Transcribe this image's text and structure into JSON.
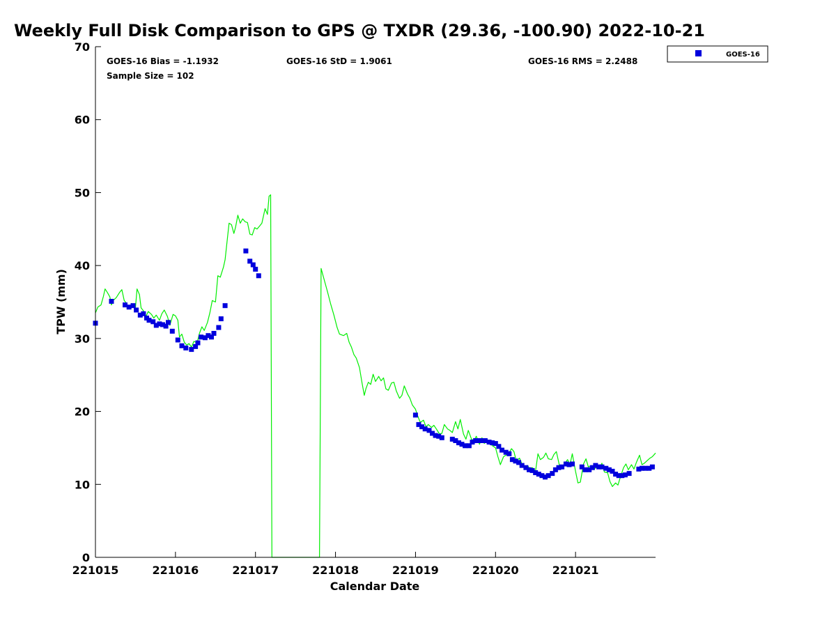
{
  "title": "Weekly Full Disk Comparison to GPS @ TXDR (29.36, -100.90) 2022-10-21",
  "stats": {
    "bias": "GOES-16 Bias = -1.1932",
    "std": "GOES-16 StD = 1.9061",
    "rms": "GOES-16 RMS = 2.2488",
    "sample": "Sample Size = 102"
  },
  "legend": {
    "label": "GOES-16"
  },
  "colors": {
    "goes": "#0000dd",
    "gps": "#00ee00",
    "axis": "#000000"
  },
  "chart_data": {
    "type": "scatter",
    "xlabel": "Calendar Date",
    "ylabel": "TPW (mm)",
    "xlim": [
      0,
      7
    ],
    "ylim": [
      0,
      70
    ],
    "x_ticks": [
      0,
      1,
      2,
      3,
      4,
      5,
      6
    ],
    "x_tick_labels": [
      "221015",
      "221016",
      "221017",
      "221018",
      "221019",
      "221020",
      "221021"
    ],
    "y_ticks": [
      0,
      10,
      20,
      30,
      40,
      50,
      60,
      70
    ],
    "y_tick_labels": [
      "0",
      "10",
      "20",
      "30",
      "40",
      "50",
      "60",
      "70"
    ],
    "series": [
      {
        "name": "GOES-16",
        "marker": "square",
        "points": [
          [
            0.0,
            32.1
          ],
          [
            0.2,
            35.1
          ],
          [
            0.37,
            34.6
          ],
          [
            0.42,
            34.3
          ],
          [
            0.47,
            34.5
          ],
          [
            0.51,
            33.9
          ],
          [
            0.56,
            33.2
          ],
          [
            0.6,
            33.4
          ],
          [
            0.64,
            32.8
          ],
          [
            0.67,
            32.5
          ],
          [
            0.72,
            32.3
          ],
          [
            0.76,
            31.8
          ],
          [
            0.8,
            32.0
          ],
          [
            0.84,
            31.9
          ],
          [
            0.88,
            31.7
          ],
          [
            0.91,
            32.2
          ],
          [
            0.96,
            31.0
          ],
          [
            1.03,
            29.8
          ],
          [
            1.08,
            29.0
          ],
          [
            1.13,
            28.7
          ],
          [
            1.2,
            28.5
          ],
          [
            1.25,
            28.9
          ],
          [
            1.28,
            29.4
          ],
          [
            1.32,
            30.2
          ],
          [
            1.37,
            30.1
          ],
          [
            1.41,
            30.4
          ],
          [
            1.45,
            30.2
          ],
          [
            1.48,
            30.7
          ],
          [
            1.54,
            31.5
          ],
          [
            1.57,
            32.7
          ],
          [
            1.62,
            34.5
          ],
          [
            1.88,
            42.0
          ],
          [
            1.93,
            40.6
          ],
          [
            1.97,
            40.1
          ],
          [
            2.0,
            39.5
          ],
          [
            2.04,
            38.6
          ],
          [
            4.0,
            19.5
          ],
          [
            4.04,
            18.2
          ],
          [
            4.08,
            17.9
          ],
          [
            4.12,
            17.6
          ],
          [
            4.17,
            17.4
          ],
          [
            4.21,
            17.0
          ],
          [
            4.25,
            16.7
          ],
          [
            4.29,
            16.6
          ],
          [
            4.33,
            16.4
          ],
          [
            4.46,
            16.2
          ],
          [
            4.5,
            16.0
          ],
          [
            4.54,
            15.7
          ],
          [
            4.58,
            15.5
          ],
          [
            4.62,
            15.3
          ],
          [
            4.67,
            15.3
          ],
          [
            4.71,
            15.8
          ],
          [
            4.75,
            16.0
          ],
          [
            4.79,
            16.0
          ],
          [
            4.83,
            16.0
          ],
          [
            4.87,
            16.0
          ],
          [
            4.92,
            15.8
          ],
          [
            4.96,
            15.7
          ],
          [
            5.0,
            15.6
          ],
          [
            5.04,
            15.2
          ],
          [
            5.08,
            14.7
          ],
          [
            5.13,
            14.4
          ],
          [
            5.17,
            14.2
          ],
          [
            5.21,
            13.4
          ],
          [
            5.25,
            13.2
          ],
          [
            5.29,
            13.0
          ],
          [
            5.33,
            12.6
          ],
          [
            5.38,
            12.3
          ],
          [
            5.42,
            12.0
          ],
          [
            5.46,
            11.9
          ],
          [
            5.5,
            11.6
          ],
          [
            5.54,
            11.4
          ],
          [
            5.58,
            11.2
          ],
          [
            5.62,
            11.0
          ],
          [
            5.66,
            11.2
          ],
          [
            5.71,
            11.5
          ],
          [
            5.75,
            12.0
          ],
          [
            5.79,
            12.3
          ],
          [
            5.83,
            12.4
          ],
          [
            5.88,
            12.8
          ],
          [
            5.92,
            12.7
          ],
          [
            5.96,
            12.8
          ],
          [
            6.08,
            12.4
          ],
          [
            6.12,
            12.0
          ],
          [
            6.17,
            12.0
          ],
          [
            6.21,
            12.3
          ],
          [
            6.25,
            12.6
          ],
          [
            6.29,
            12.4
          ],
          [
            6.33,
            12.4
          ],
          [
            6.38,
            12.2
          ],
          [
            6.42,
            12.0
          ],
          [
            6.46,
            11.8
          ],
          [
            6.5,
            11.4
          ],
          [
            6.54,
            11.2
          ],
          [
            6.58,
            11.2
          ],
          [
            6.62,
            11.3
          ],
          [
            6.67,
            11.5
          ],
          [
            6.79,
            12.1
          ],
          [
            6.83,
            12.2
          ],
          [
            6.87,
            12.2
          ],
          [
            6.92,
            12.2
          ],
          [
            6.96,
            12.4
          ]
        ]
      },
      {
        "name": "",
        "marker": "line",
        "points": [
          [
            0.0,
            33.5
          ],
          [
            0.03,
            34.3
          ],
          [
            0.07,
            34.6
          ],
          [
            0.1,
            35.8
          ],
          [
            0.12,
            36.8
          ],
          [
            0.15,
            36.3
          ],
          [
            0.18,
            35.7
          ],
          [
            0.2,
            34.6
          ],
          [
            0.22,
            35.2
          ],
          [
            0.26,
            35.6
          ],
          [
            0.3,
            36.3
          ],
          [
            0.33,
            36.7
          ],
          [
            0.36,
            35.2
          ],
          [
            0.39,
            34.8
          ],
          [
            0.42,
            34.1
          ],
          [
            0.45,
            34.8
          ],
          [
            0.48,
            34.3
          ],
          [
            0.5,
            34.2
          ],
          [
            0.52,
            36.8
          ],
          [
            0.55,
            36.0
          ],
          [
            0.57,
            34.2
          ],
          [
            0.6,
            33.8
          ],
          [
            0.63,
            33.0
          ],
          [
            0.66,
            33.7
          ],
          [
            0.7,
            33.3
          ],
          [
            0.73,
            32.8
          ],
          [
            0.76,
            33.2
          ],
          [
            0.8,
            32.5
          ],
          [
            0.83,
            33.4
          ],
          [
            0.86,
            33.9
          ],
          [
            0.9,
            33.0
          ],
          [
            0.93,
            31.8
          ],
          [
            0.97,
            33.3
          ],
          [
            1.0,
            33.1
          ],
          [
            1.03,
            32.5
          ],
          [
            1.05,
            30.2
          ],
          [
            1.08,
            30.6
          ],
          [
            1.11,
            29.5
          ],
          [
            1.14,
            29.1
          ],
          [
            1.17,
            29.3
          ],
          [
            1.2,
            28.8
          ],
          [
            1.23,
            29.6
          ],
          [
            1.27,
            29.4
          ],
          [
            1.3,
            30.7
          ],
          [
            1.33,
            31.6
          ],
          [
            1.36,
            31.1
          ],
          [
            1.4,
            32.2
          ],
          [
            1.43,
            33.5
          ],
          [
            1.46,
            35.2
          ],
          [
            1.5,
            35.0
          ],
          [
            1.53,
            38.6
          ],
          [
            1.56,
            38.4
          ],
          [
            1.6,
            39.8
          ],
          [
            1.62,
            40.8
          ],
          [
            1.65,
            43.8
          ],
          [
            1.67,
            45.8
          ],
          [
            1.7,
            45.6
          ],
          [
            1.73,
            44.4
          ],
          [
            1.75,
            45.2
          ],
          [
            1.78,
            46.9
          ],
          [
            1.81,
            45.8
          ],
          [
            1.84,
            46.4
          ],
          [
            1.87,
            46.0
          ],
          [
            1.9,
            45.9
          ],
          [
            1.93,
            44.3
          ],
          [
            1.96,
            44.2
          ],
          [
            1.99,
            45.2
          ],
          [
            2.02,
            45.0
          ],
          [
            2.05,
            45.4
          ],
          [
            2.08,
            45.8
          ],
          [
            2.12,
            47.8
          ],
          [
            2.15,
            47.0
          ],
          [
            2.17,
            49.5
          ],
          [
            2.19,
            49.7
          ],
          [
            2.205,
            0.0
          ],
          [
            2.8,
            0.0
          ],
          [
            2.82,
            39.6
          ],
          [
            2.86,
            38.0
          ],
          [
            2.9,
            36.4
          ],
          [
            2.94,
            34.7
          ],
          [
            2.98,
            33.2
          ],
          [
            3.02,
            31.5
          ],
          [
            3.05,
            30.6
          ],
          [
            3.1,
            30.4
          ],
          [
            3.14,
            30.7
          ],
          [
            3.17,
            29.5
          ],
          [
            3.2,
            28.8
          ],
          [
            3.23,
            27.8
          ],
          [
            3.26,
            27.3
          ],
          [
            3.3,
            26.0
          ],
          [
            3.33,
            24.0
          ],
          [
            3.36,
            22.2
          ],
          [
            3.38,
            23.1
          ],
          [
            3.41,
            24.0
          ],
          [
            3.44,
            23.7
          ],
          [
            3.47,
            25.1
          ],
          [
            3.5,
            24.1
          ],
          [
            3.54,
            24.8
          ],
          [
            3.57,
            24.2
          ],
          [
            3.6,
            24.6
          ],
          [
            3.63,
            23.1
          ],
          [
            3.66,
            22.9
          ],
          [
            3.7,
            23.9
          ],
          [
            3.73,
            24.0
          ],
          [
            3.76,
            22.8
          ],
          [
            3.8,
            21.8
          ],
          [
            3.83,
            22.2
          ],
          [
            3.86,
            23.5
          ],
          [
            3.9,
            22.4
          ],
          [
            3.93,
            21.8
          ],
          [
            3.96,
            20.9
          ],
          [
            4.0,
            20.3
          ],
          [
            4.03,
            19.3
          ],
          [
            4.06,
            18.5
          ],
          [
            4.1,
            18.8
          ],
          [
            4.13,
            17.9
          ],
          [
            4.16,
            18.2
          ],
          [
            4.2,
            17.8
          ],
          [
            4.23,
            18.1
          ],
          [
            4.26,
            17.6
          ],
          [
            4.3,
            16.9
          ],
          [
            4.33,
            17.0
          ],
          [
            4.36,
            18.2
          ],
          [
            4.4,
            17.6
          ],
          [
            4.43,
            17.4
          ],
          [
            4.46,
            17.1
          ],
          [
            4.5,
            18.6
          ],
          [
            4.53,
            17.6
          ],
          [
            4.56,
            18.9
          ],
          [
            4.6,
            16.9
          ],
          [
            4.63,
            16.2
          ],
          [
            4.66,
            17.4
          ],
          [
            4.7,
            16.2
          ],
          [
            4.73,
            16.0
          ],
          [
            4.76,
            16.6
          ],
          [
            4.8,
            15.5
          ],
          [
            4.83,
            16.4
          ],
          [
            4.86,
            15.6
          ],
          [
            4.9,
            16.1
          ],
          [
            4.93,
            15.7
          ],
          [
            4.96,
            15.3
          ],
          [
            5.0,
            15.0
          ],
          [
            5.03,
            13.8
          ],
          [
            5.06,
            12.7
          ],
          [
            5.1,
            13.8
          ],
          [
            5.13,
            14.0
          ],
          [
            5.16,
            14.2
          ],
          [
            5.2,
            14.9
          ],
          [
            5.23,
            14.5
          ],
          [
            5.26,
            13.2
          ],
          [
            5.3,
            13.6
          ],
          [
            5.33,
            12.8
          ],
          [
            5.36,
            12.4
          ],
          [
            5.4,
            12.6
          ],
          [
            5.43,
            12.1
          ],
          [
            5.46,
            12.3
          ],
          [
            5.5,
            11.8
          ],
          [
            5.53,
            14.2
          ],
          [
            5.56,
            13.4
          ],
          [
            5.6,
            13.7
          ],
          [
            5.63,
            14.3
          ],
          [
            5.66,
            13.5
          ],
          [
            5.7,
            13.4
          ],
          [
            5.73,
            14.1
          ],
          [
            5.76,
            14.5
          ],
          [
            5.8,
            12.5
          ],
          [
            5.83,
            12.2
          ],
          [
            5.86,
            12.8
          ],
          [
            5.9,
            13.4
          ],
          [
            5.93,
            12.7
          ],
          [
            5.96,
            14.2
          ],
          [
            6.0,
            11.8
          ],
          [
            6.03,
            10.2
          ],
          [
            6.06,
            10.3
          ],
          [
            6.1,
            12.8
          ],
          [
            6.13,
            13.5
          ],
          [
            6.16,
            12.4
          ],
          [
            6.2,
            12.6
          ],
          [
            6.23,
            12.0
          ],
          [
            6.26,
            12.4
          ],
          [
            6.3,
            12.2
          ],
          [
            6.33,
            12.9
          ],
          [
            6.36,
            11.7
          ],
          [
            6.4,
            11.6
          ],
          [
            6.43,
            10.4
          ],
          [
            6.46,
            9.7
          ],
          [
            6.5,
            10.2
          ],
          [
            6.53,
            9.9
          ],
          [
            6.56,
            11.0
          ],
          [
            6.6,
            12.3
          ],
          [
            6.63,
            12.8
          ],
          [
            6.66,
            12.0
          ],
          [
            6.7,
            12.7
          ],
          [
            6.73,
            12.1
          ],
          [
            6.76,
            13.0
          ],
          [
            6.8,
            14.0
          ],
          [
            6.83,
            12.7
          ],
          [
            6.86,
            12.9
          ],
          [
            6.9,
            13.3
          ],
          [
            6.93,
            13.6
          ],
          [
            6.96,
            13.8
          ],
          [
            7.0,
            14.3
          ]
        ]
      }
    ]
  }
}
